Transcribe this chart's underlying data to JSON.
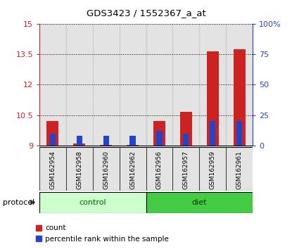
{
  "title": "GDS3423 / 1552367_a_at",
  "samples": [
    "GSM162954",
    "GSM162958",
    "GSM162960",
    "GSM162962",
    "GSM162956",
    "GSM162957",
    "GSM162959",
    "GSM162961"
  ],
  "groups": [
    "control",
    "control",
    "control",
    "control",
    "diet",
    "diet",
    "diet",
    "diet"
  ],
  "red_values": [
    10.22,
    9.1,
    9.05,
    9.05,
    10.22,
    10.65,
    13.65,
    13.75
  ],
  "blue_values": [
    10.0,
    8.0,
    8.0,
    8.0,
    12.0,
    10.0,
    20.0,
    20.0
  ],
  "ylim_left": [
    9,
    15
  ],
  "ylim_right": [
    0,
    100
  ],
  "yticks_left": [
    9,
    10.5,
    12,
    13.5,
    15
  ],
  "yticks_right": [
    0,
    25,
    50,
    75,
    100
  ],
  "ytick_labels_left": [
    "9",
    "10.5",
    "12",
    "13.5",
    "15"
  ],
  "ytick_labels_right": [
    "0",
    "25",
    "50",
    "75",
    "100%"
  ],
  "bar_bottom": 9.0,
  "red_color": "#cc2222",
  "blue_color": "#2244cc",
  "control_color_light": "#ccffcc",
  "diet_color_dark": "#44cc44",
  "sample_bg_color": "#cccccc",
  "red_bar_width": 0.45,
  "blue_bar_width": 0.22,
  "legend_count": "count",
  "legend_pct": "percentile rank within the sample",
  "protocol_label": "protocol"
}
